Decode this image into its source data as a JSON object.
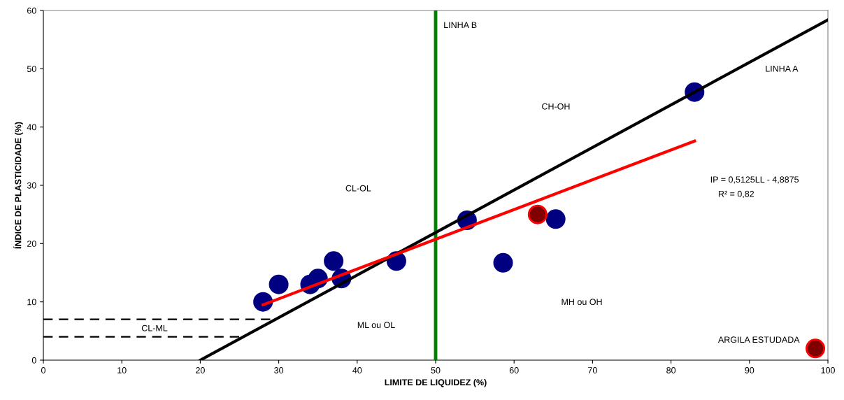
{
  "chart_data": {
    "type": "scatter",
    "xlabel": "LIMITE DE LIQUIDEZ (%)",
    "ylabel": "ÍNDICE DE PLASTICIDADE (%)",
    "xlim": [
      0,
      100
    ],
    "ylim": [
      0,
      60
    ],
    "xticks": [
      0,
      10,
      20,
      30,
      40,
      50,
      60,
      70,
      80,
      90,
      100
    ],
    "yticks": [
      0,
      10,
      20,
      30,
      40,
      50,
      60
    ],
    "grid": false,
    "legend": false,
    "series": [
      {
        "type": "line",
        "color": "#000000",
        "x": [
          20,
          100
        ],
        "values": [
          0,
          58.4
        ],
        "line_style": "solid"
      },
      {
        "type": "line",
        "color": "#000000",
        "x": [
          0,
          29.6
        ],
        "values": [
          7,
          7
        ],
        "line_style": "dashed"
      },
      {
        "type": "line",
        "color": "#000000",
        "x": [
          0,
          25.5
        ],
        "values": [
          4,
          4
        ],
        "line_style": "dashed"
      },
      {
        "type": "line",
        "color": "#ff0000",
        "x": [
          28,
          83
        ],
        "values": [
          9.5,
          37.6
        ],
        "line_style": "solid"
      },
      {
        "color": "#000080",
        "marker": "circle",
        "x": [
          28,
          30,
          34,
          35,
          37,
          38,
          45,
          54,
          58.6,
          65.3,
          83
        ],
        "values": [
          10,
          13,
          13,
          14,
          17,
          14,
          17,
          24,
          16.7,
          24.2,
          46
        ]
      },
      {
        "type": "scatter",
        "color": "#800000",
        "marker": "circle",
        "x": [
          63,
          98.4
        ],
        "values": [
          25,
          2
        ]
      }
    ],
    "ref_lines": [
      {
        "axis": "x",
        "value": 50,
        "color": "#008000",
        "line_style": "solid"
      }
    ],
    "annotations": [
      "LINHA B",
      "LINHA A",
      "CH-OH",
      "CL-OL",
      "ML ou OL",
      "MH ou OH",
      "CL-ML",
      "IP = 0,5125LL - 4,8875",
      "R² = 0,82",
      "ARGILA ESTUDADA"
    ]
  }
}
